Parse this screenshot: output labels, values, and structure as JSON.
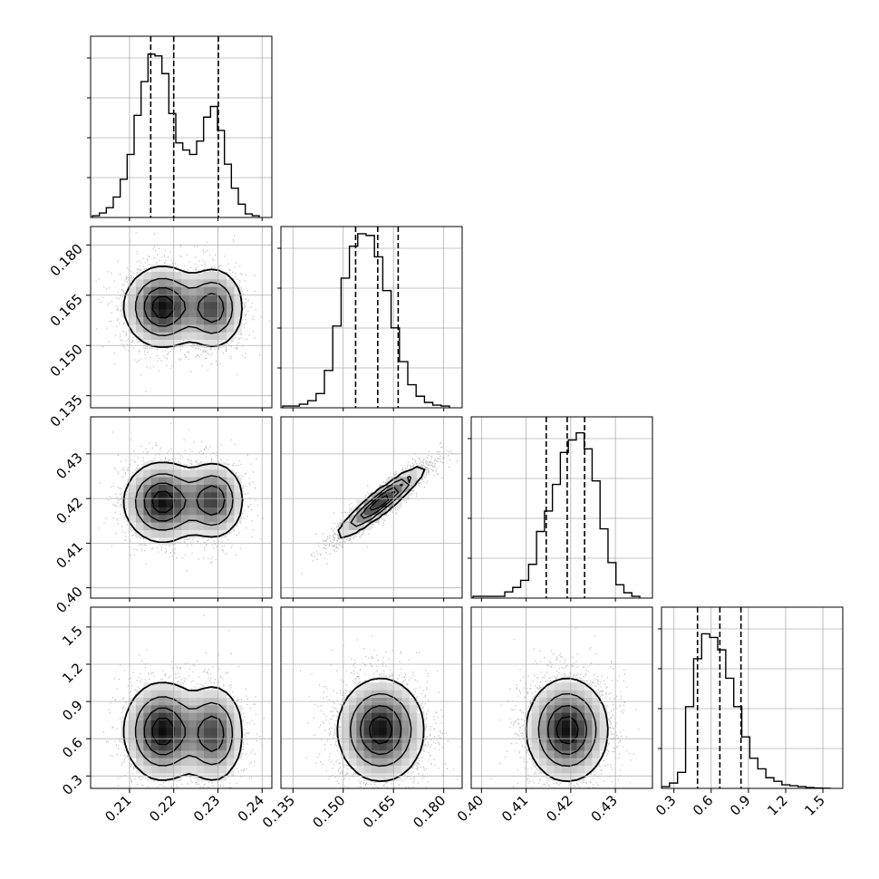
{
  "chart_data": {
    "type": "corner",
    "grid": true,
    "params": [
      {
        "ticks": [
          0.21,
          0.22,
          0.23,
          0.24
        ],
        "tick_labels": [
          "0.21",
          "0.22",
          "0.23",
          "0.24"
        ],
        "range": [
          0.2012,
          0.2422
        ],
        "quantiles": [
          0.2148,
          0.22,
          0.2301
        ]
      },
      {
        "ticks": [
          0.135,
          0.15,
          0.165,
          0.18
        ],
        "tick_labels": [
          "0.135",
          "0.150",
          "0.165",
          "0.180"
        ],
        "range": [
          0.1314,
          0.1855
        ],
        "quantiles": [
          0.1537,
          0.1603,
          0.1664
        ]
      },
      {
        "ticks": [
          0.4,
          0.41,
          0.42,
          0.43
        ],
        "tick_labels": [
          "0.40",
          "0.41",
          "0.42",
          "0.43"
        ],
        "range": [
          0.3977,
          0.4383
        ],
        "quantiles": [
          0.4145,
          0.4192,
          0.4231
        ]
      },
      {
        "ticks": [
          0.3,
          0.6,
          0.9,
          1.2,
          1.5
        ],
        "tick_labels": [
          "0.3",
          "0.6",
          "0.9",
          "1.2",
          "1.5"
        ],
        "range": [
          0.2,
          1.66
        ],
        "quantiles": [
          0.49,
          0.67,
          0.84
        ]
      }
    ],
    "histograms": [
      [
        0.01,
        0.025,
        0.055,
        0.115,
        0.215,
        0.355,
        0.575,
        0.765,
        0.92,
        0.91,
        0.81,
        0.585,
        0.42,
        0.38,
        0.355,
        0.43,
        0.565,
        0.625,
        0.49,
        0.3,
        0.165,
        0.075,
        0.02,
        0.01
      ],
      [
        0.01,
        0.01,
        0.02,
        0.04,
        0.08,
        0.21,
        0.46,
        0.73,
        0.91,
        0.98,
        0.97,
        0.85,
        0.66,
        0.45,
        0.26,
        0.13,
        0.065,
        0.03,
        0.015,
        0.01
      ],
      [
        0.01,
        0.01,
        0.01,
        0.01,
        0.035,
        0.06,
        0.1,
        0.19,
        0.375,
        0.49,
        0.64,
        0.82,
        0.89,
        0.93,
        0.84,
        0.66,
        0.39,
        0.2,
        0.075,
        0.03,
        0.01
      ],
      [
        0.01,
        0.03,
        0.09,
        0.46,
        0.73,
        0.87,
        0.85,
        0.78,
        0.62,
        0.46,
        0.29,
        0.17,
        0.11,
        0.06,
        0.04,
        0.02,
        0.015,
        0.01,
        0.005,
        0.002,
        0.001
      ]
    ],
    "blobs": {
      "1,0": [
        {
          "mx": 0.2175,
          "my": 0.1615,
          "sx": 0.0042,
          "sy": 0.0058,
          "w": 0.62
        },
        {
          "mx": 0.229,
          "my": 0.1612,
          "sx": 0.0033,
          "sy": 0.0058,
          "w": 0.38
        }
      ],
      "2,0": [
        {
          "mx": 0.2175,
          "my": 0.4192,
          "sx": 0.0042,
          "sy": 0.0043,
          "w": 0.62
        },
        {
          "mx": 0.229,
          "my": 0.4196,
          "sx": 0.0033,
          "sy": 0.0041,
          "w": 0.38
        }
      ],
      "2,1": [
        {
          "mx": 0.1612,
          "my": 0.4192,
          "sx": 0.0062,
          "sy": 0.0038,
          "rho": 0.93,
          "w": 1.0
        }
      ],
      "3,0": [
        {
          "mx": 0.2175,
          "my": 0.66,
          "sx": 0.0042,
          "sy": 0.19,
          "w": 0.62
        },
        {
          "mx": 0.229,
          "my": 0.64,
          "sx": 0.0033,
          "sy": 0.19,
          "w": 0.38
        }
      ],
      "3,1": [
        {
          "mx": 0.1612,
          "my": 0.67,
          "sx": 0.0062,
          "sy": 0.2,
          "w": 1.0
        }
      ],
      "3,2": [
        {
          "mx": 0.4192,
          "my": 0.67,
          "sx": 0.0044,
          "sy": 0.2,
          "w": 1.0
        }
      ]
    },
    "colors": {
      "hist_line": "#000000",
      "scatter": "#444444",
      "grid": "#b0b0b0"
    }
  }
}
